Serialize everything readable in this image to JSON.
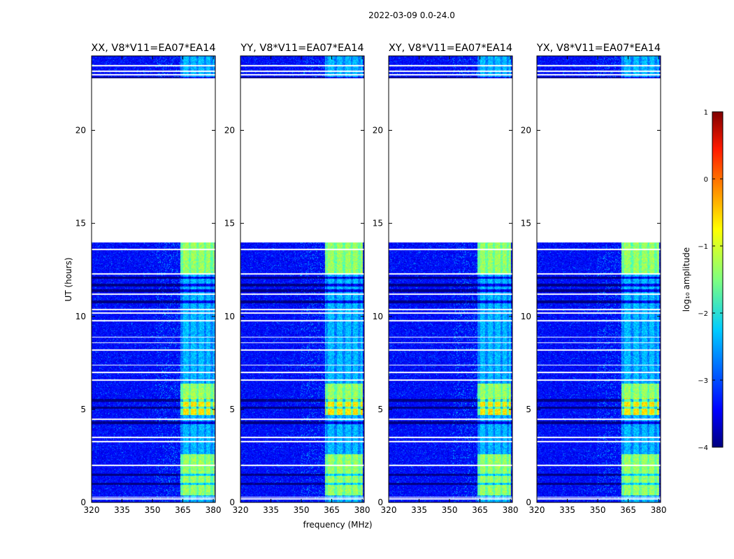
{
  "figure_title": "2022-03-09 0.0-24.0",
  "chart_data": {
    "type": "heatmap",
    "xlabel": "frequency (MHz)",
    "ylabel": "UT (hours)",
    "xlim": [
      320,
      381
    ],
    "ylim": [
      0,
      24
    ],
    "x_ticks": [
      "320",
      "335",
      "350",
      "365",
      "380"
    ],
    "x_tick_values": [
      320,
      335,
      350,
      365,
      380
    ],
    "y_ticks": [
      "0",
      "5",
      "10",
      "15",
      "20"
    ],
    "y_tick_values": [
      0,
      5,
      10,
      15,
      20
    ],
    "panels": [
      {
        "title": "XX, V8*V11=EA07*EA14",
        "rfi_band_mhz": [
          363.5,
          380.5
        ]
      },
      {
        "title": "YY, V8*V11=EA07*EA14",
        "rfi_band_mhz": [
          361.5,
          380.0
        ]
      },
      {
        "title": "XY, V8*V11=EA07*EA14",
        "rfi_band_mhz": [
          363.5,
          380.0
        ]
      },
      {
        "title": "YX, V8*V11=EA07*EA14",
        "rfi_band_mhz": [
          361.5,
          380.0
        ]
      }
    ],
    "data_gaps_hours": [
      [
        14.0,
        22.8
      ]
    ],
    "flag_lines_hours": [
      0.2,
      0.3,
      2.0,
      3.3,
      3.5,
      4.5,
      6.6,
      7.0,
      7.4,
      8.2,
      8.6,
      8.9,
      9.8,
      10.2,
      10.4,
      11.2,
      12.3,
      13.6,
      23.0,
      23.2,
      23.5
    ],
    "dark_rows_hours": [
      1.0,
      1.5,
      4.3,
      5.1,
      5.5,
      10.8,
      11.4,
      11.7,
      12.1,
      22.85
    ],
    "bright_hours": [
      [
        0.4,
        2.6
      ],
      [
        4.7,
        6.4
      ],
      [
        12.3,
        14.0
      ]
    ],
    "colorbar": {
      "label": "log₁₀ amplitude",
      "vmin": -4,
      "vmax": 1,
      "ticks": [
        "1",
        "0",
        "−1",
        "−2",
        "−3",
        "−4"
      ],
      "tick_values": [
        1,
        0,
        -1,
        -2,
        -3,
        -4
      ]
    }
  }
}
